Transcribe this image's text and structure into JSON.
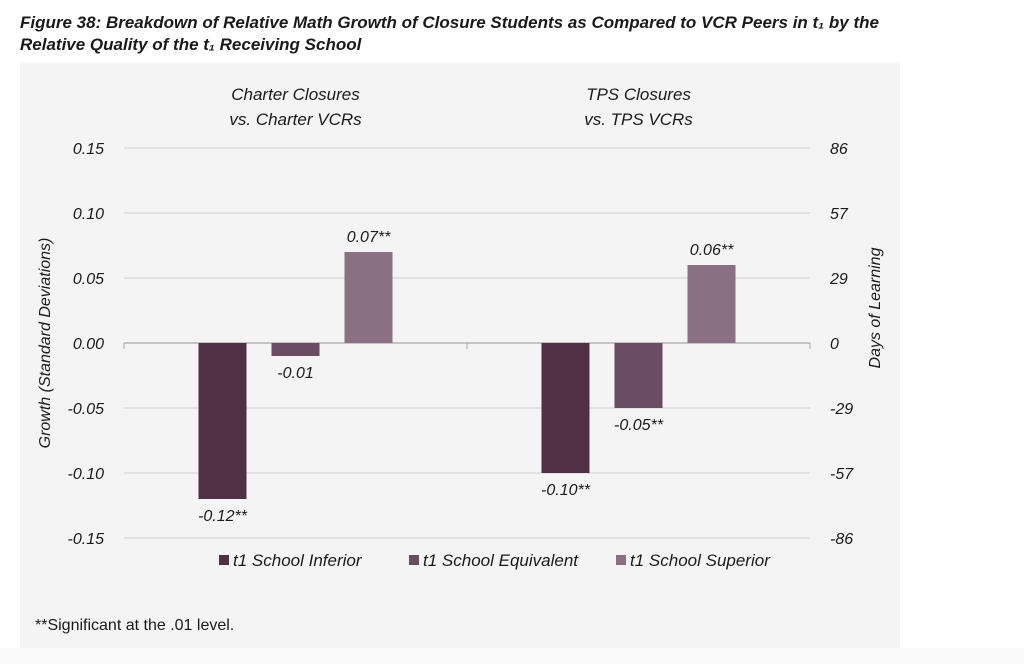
{
  "figure": {
    "title_line1": "Figure 38: Breakdown of Relative Math Growth of Closure Students as Compared to VCR Peers in t₁ by the",
    "title_line2": "Relative Quality of the t₁ Receiving School",
    "footnote": "**Significant at the .01 level."
  },
  "chart_data": {
    "type": "bar",
    "title": "Breakdown of Relative Math Growth of Closure Students as Compared to VCR Peers in t1 by the Relative Quality of the t1 Receiving School",
    "categories": [
      "Charter Closures\nvs. Charter VCRs",
      "TPS Closures\nvs. TPS VCRs"
    ],
    "category_lines": [
      [
        "Charter Closures",
        "vs. Charter VCRs"
      ],
      [
        "TPS Closures",
        "vs. TPS VCRs"
      ]
    ],
    "series": [
      {
        "name": "t1 School Inferior",
        "color": "#4f3045",
        "values": [
          -0.12,
          -0.1
        ],
        "labels": [
          "-0.12**",
          "-0.10**"
        ]
      },
      {
        "name": "t1 School Equivalent",
        "color": "#6b4d63",
        "values": [
          -0.01,
          -0.05
        ],
        "labels": [
          "-0.01",
          "-0.05**"
        ]
      },
      {
        "name": "t1 School Superior",
        "color": "#8b6f83",
        "values": [
          0.07,
          0.06
        ],
        "labels": [
          "0.07**",
          "0.06**"
        ]
      }
    ],
    "ylabel": "Growth (Standard Deviations)",
    "y2label": "Days of Learning",
    "ylim": [
      -0.15,
      0.15
    ],
    "yticks": [
      0.15,
      0.1,
      0.05,
      0.0,
      -0.05,
      -0.1,
      -0.15
    ],
    "ytick_labels": [
      "0.15",
      "0.10",
      "0.05",
      "0.00",
      "-0.05",
      "-0.10",
      "-0.15"
    ],
    "y2tick_labels": [
      "86",
      "57",
      "29",
      "0",
      "-29",
      "-57",
      "-86"
    ],
    "grid": true,
    "legend": "bottom"
  }
}
